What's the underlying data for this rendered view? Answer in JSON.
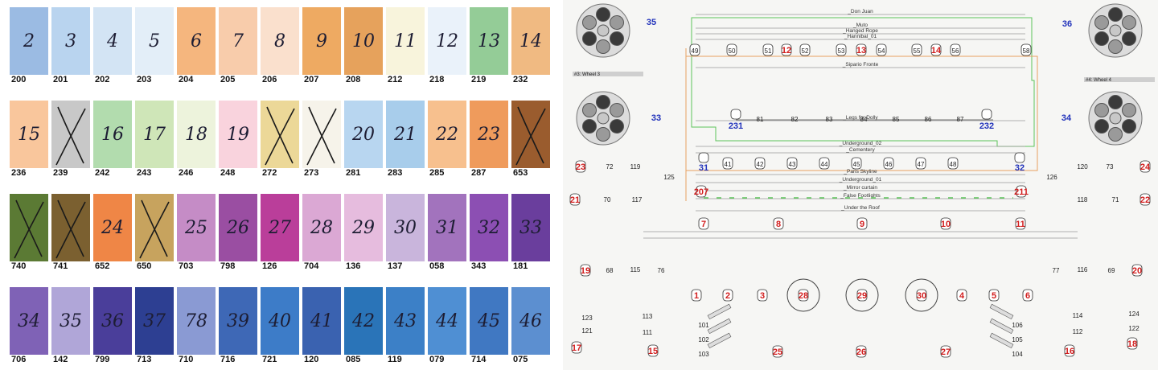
{
  "swatches": [
    {
      "code": "200",
      "hand": "2",
      "color": "#9bbbe3",
      "crossed": false
    },
    {
      "code": "201",
      "hand": "3",
      "color": "#b9d4ef",
      "crossed": false
    },
    {
      "code": "202",
      "hand": "4",
      "color": "#d3e4f4",
      "crossed": false
    },
    {
      "code": "203",
      "hand": "5",
      "color": "#e3eef8",
      "crossed": false
    },
    {
      "code": "204",
      "hand": "6",
      "color": "#f5b67e",
      "crossed": false
    },
    {
      "code": "205",
      "hand": "7",
      "color": "#f8ccab",
      "crossed": false
    },
    {
      "code": "206",
      "hand": "8",
      "color": "#fae0cd",
      "crossed": false
    },
    {
      "code": "207",
      "hand": "9",
      "color": "#eeaa62",
      "crossed": false
    },
    {
      "code": "208",
      "hand": "10",
      "color": "#e6a25c",
      "crossed": false
    },
    {
      "code": "212",
      "hand": "11",
      "color": "#f8f4dc",
      "crossed": false
    },
    {
      "code": "218",
      "hand": "12",
      "color": "#eaf2fa",
      "crossed": false
    },
    {
      "code": "219",
      "hand": "13",
      "color": "#94cc97",
      "crossed": false
    },
    {
      "code": "232",
      "hand": "14",
      "color": "#f0ba82",
      "crossed": false
    },
    {
      "code": "236",
      "hand": "15",
      "color": "#f9c69c",
      "crossed": false
    },
    {
      "code": "239",
      "hand": "",
      "color": "#c8c8c8",
      "crossed": true
    },
    {
      "code": "242",
      "hand": "16",
      "color": "#b2dcae",
      "crossed": false
    },
    {
      "code": "243",
      "hand": "17",
      "color": "#cfe6b8",
      "crossed": false
    },
    {
      "code": "246",
      "hand": "18",
      "color": "#edf3dc",
      "crossed": false
    },
    {
      "code": "248",
      "hand": "19",
      "color": "#f9d3dd",
      "crossed": false
    },
    {
      "code": "272",
      "hand": "",
      "color": "#ecd898",
      "crossed": true
    },
    {
      "code": "273",
      "hand": "",
      "color": "#f6f3ea",
      "crossed": true
    },
    {
      "code": "281",
      "hand": "20",
      "color": "#b8d6f0",
      "crossed": false
    },
    {
      "code": "283",
      "hand": "21",
      "color": "#a8cdeb",
      "crossed": false
    },
    {
      "code": "285",
      "hand": "22",
      "color": "#f7c08e",
      "crossed": false
    },
    {
      "code": "287",
      "hand": "23",
      "color": "#ef9b5c",
      "crossed": false
    },
    {
      "code": "653",
      "hand": "",
      "color": "#9a5c2e",
      "crossed": true
    },
    {
      "code": "740",
      "hand": "",
      "color": "#5b7a34",
      "crossed": true
    },
    {
      "code": "741",
      "hand": "",
      "color": "#7b6030",
      "crossed": true
    },
    {
      "code": "652",
      "hand": "24",
      "color": "#ef8646",
      "crossed": false
    },
    {
      "code": "650",
      "hand": "",
      "color": "#c7a35e",
      "crossed": true
    },
    {
      "code": "703",
      "hand": "25",
      "color": "#c58cc6",
      "crossed": false
    },
    {
      "code": "798",
      "hand": "26",
      "color": "#9a4ea2",
      "crossed": false
    },
    {
      "code": "126",
      "hand": "27",
      "color": "#ba3e9a",
      "crossed": false
    },
    {
      "code": "704",
      "hand": "28",
      "color": "#dba8d4",
      "crossed": false
    },
    {
      "code": "136",
      "hand": "29",
      "color": "#e6bcde",
      "crossed": false
    },
    {
      "code": "137",
      "hand": "30",
      "color": "#c9b5dc",
      "crossed": false
    },
    {
      "code": "058",
      "hand": "31",
      "color": "#a273bd",
      "crossed": false
    },
    {
      "code": "343",
      "hand": "32",
      "color": "#8c4fb3",
      "crossed": false
    },
    {
      "code": "181",
      "hand": "33",
      "color": "#6a3e9d",
      "crossed": false
    },
    {
      "code": "706",
      "hand": "34",
      "color": "#7f62b6",
      "crossed": false
    },
    {
      "code": "142",
      "hand": "35",
      "color": "#b0a6d8",
      "crossed": false
    },
    {
      "code": "799",
      "hand": "36",
      "color": "#4a3e9a",
      "crossed": false
    },
    {
      "code": "713",
      "hand": "37",
      "color": "#2d3f92",
      "crossed": false
    },
    {
      "code": "710",
      "hand": "78",
      "color": "#8a9ad3",
      "crossed": false
    },
    {
      "code": "716",
      "hand": "39",
      "color": "#3e68b6",
      "crossed": false
    },
    {
      "code": "721",
      "hand": "40",
      "color": "#3d7cc8",
      "crossed": false
    },
    {
      "code": "120",
      "hand": "41",
      "color": "#3a62b0",
      "crossed": false
    },
    {
      "code": "085",
      "hand": "42",
      "color": "#2a74b8",
      "crossed": false
    },
    {
      "code": "119",
      "hand": "43",
      "color": "#3c80c7",
      "crossed": false
    },
    {
      "code": "079",
      "hand": "44",
      "color": "#4f8fd3",
      "crossed": false
    },
    {
      "code": "714",
      "hand": "45",
      "color": "#4078c2",
      "crossed": false
    },
    {
      "code": "075",
      "hand": "46",
      "color": "#5c8fd0",
      "crossed": false
    }
  ],
  "plot": {
    "wheel_labels": {
      "w3": "#3: Wheel 3",
      "w4": "#4: Wheel 4"
    },
    "wheel_numbers": [
      "35",
      "36",
      "33",
      "34"
    ],
    "line_labels": [
      "_Don Juan",
      "_Muto",
      "_Hanged Rope",
      "_Hannibal_01",
      "_Sipario Fronte",
      "_Legs for Dolly",
      "_Underground_02",
      "_Cementery",
      "_Paris Skyline",
      "_Underground_01",
      "_Mirror curtain",
      "_False Footlights",
      "_Under the Roof"
    ],
    "truss_top": [
      "49",
      "50",
      "51",
      "12",
      "52",
      "53",
      "13",
      "54",
      "55",
      "14",
      "56",
      "58"
    ],
    "truss_mid": [
      "231",
      "81",
      "82",
      "83",
      "84",
      "85",
      "86",
      "87",
      "232"
    ],
    "truss_row3": [
      "31",
      "41",
      "42",
      "43",
      "44",
      "45",
      "46",
      "47",
      "48",
      "32"
    ],
    "side_left": [
      "23",
      "72",
      "119",
      "125",
      "21",
      "70",
      "117",
      "207",
      "19",
      "68",
      "115",
      "76",
      "17",
      "15",
      "123",
      "121",
      "113",
      "111"
    ],
    "side_right": [
      "24",
      "73",
      "120",
      "126",
      "22",
      "71",
      "118",
      "211",
      "20",
      "69",
      "116",
      "77",
      "18",
      "16",
      "124",
      "122",
      "114",
      "112"
    ],
    "floor_row1": [
      "7",
      "8",
      "9",
      "10",
      "11"
    ],
    "floor_front": [
      "1",
      "2",
      "3",
      "28",
      "29",
      "30",
      "4",
      "5",
      "6"
    ],
    "floor_bottom": [
      "25",
      "26",
      "27"
    ],
    "floor_diag": [
      "101",
      "102",
      "103",
      "106",
      "105",
      "104"
    ],
    "colors": {
      "line": "#999999",
      "red": "#d21e1e",
      "blue": "#2233bb",
      "green": "#5cc45a",
      "orange": "#e8a060"
    }
  }
}
